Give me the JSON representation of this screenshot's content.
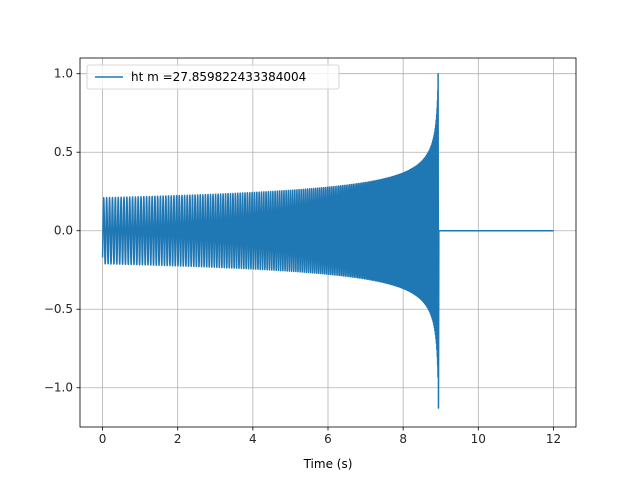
{
  "chart_data": {
    "type": "line",
    "title": "",
    "xlabel": "Time (s)",
    "ylabel": "",
    "xlim": [
      -0.6,
      12.6
    ],
    "ylim": [
      -1.25,
      1.1
    ],
    "x_ticks": [
      0,
      2,
      4,
      6,
      8,
      10,
      12
    ],
    "x_tick_labels": [
      "0",
      "2",
      "4",
      "6",
      "8",
      "10",
      "12"
    ],
    "y_ticks": [
      -1.0,
      -0.5,
      0.0,
      0.5,
      1.0
    ],
    "y_tick_labels": [
      "−1.0",
      "−0.5",
      "0.0",
      "0.5",
      "1.0"
    ],
    "grid": true,
    "legend_position": "top-left",
    "series": [
      {
        "name": "ht m =27.859822433384004",
        "color": "#1f77b4",
        "shape": "chirp",
        "start_time": 0.0,
        "merger_time": 8.93,
        "end_time": 12.0,
        "initial_amplitude": 0.21,
        "peak_max": 1.0,
        "peak_min": -1.13,
        "start_value": -0.17,
        "post_merger_value": 0.0
      }
    ]
  }
}
